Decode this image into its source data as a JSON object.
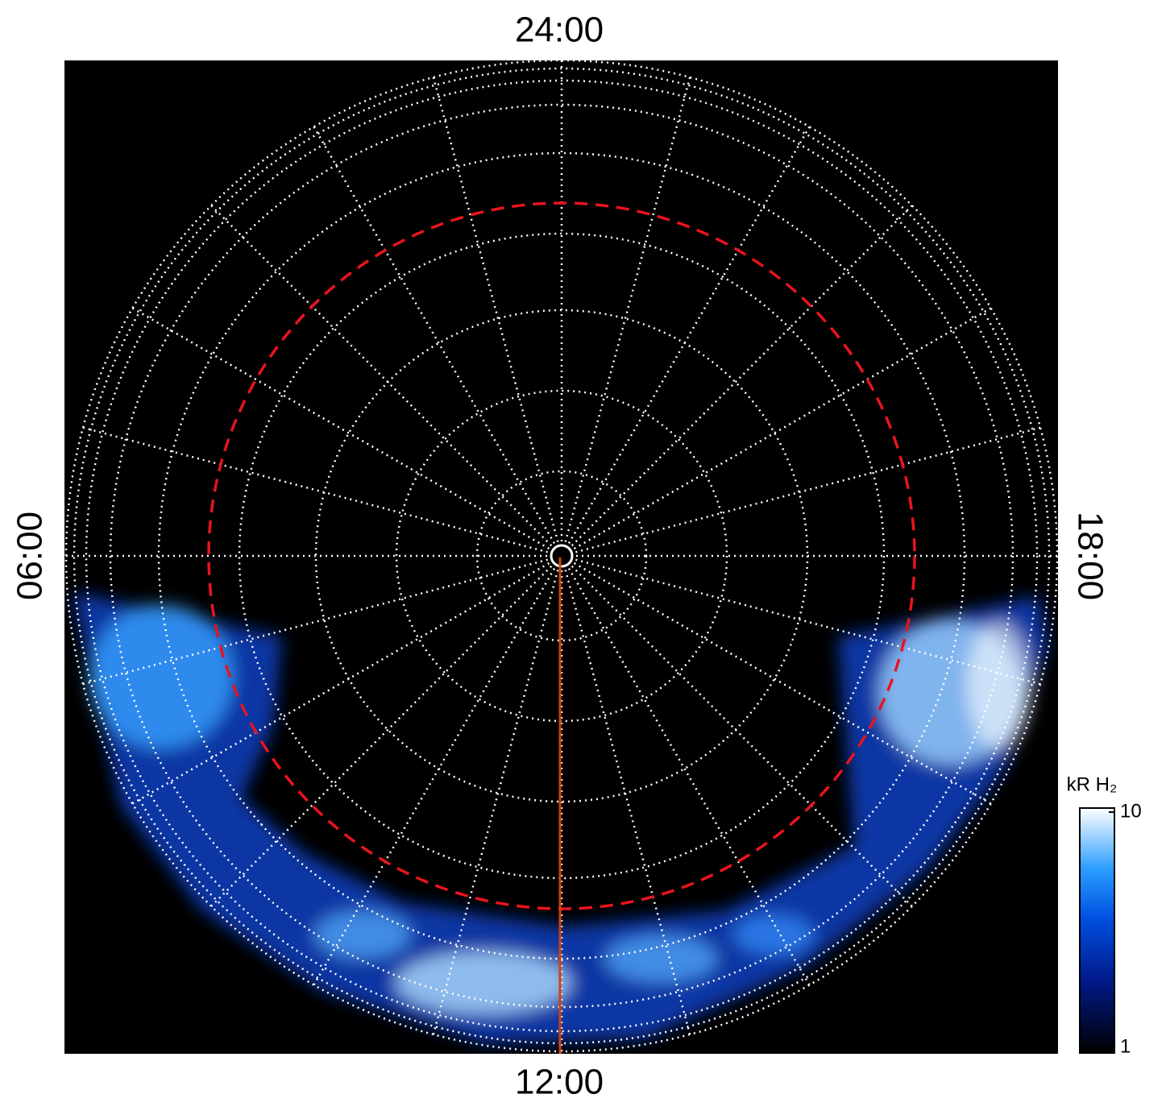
{
  "labels": {
    "top": "24:00",
    "bottom": "12:00",
    "left": "06:00",
    "right": "18:00"
  },
  "colorbar": {
    "label": "kR H₂",
    "lim": [
      1,
      10
    ],
    "ticks": [
      1,
      10
    ],
    "log": true
  }
}
